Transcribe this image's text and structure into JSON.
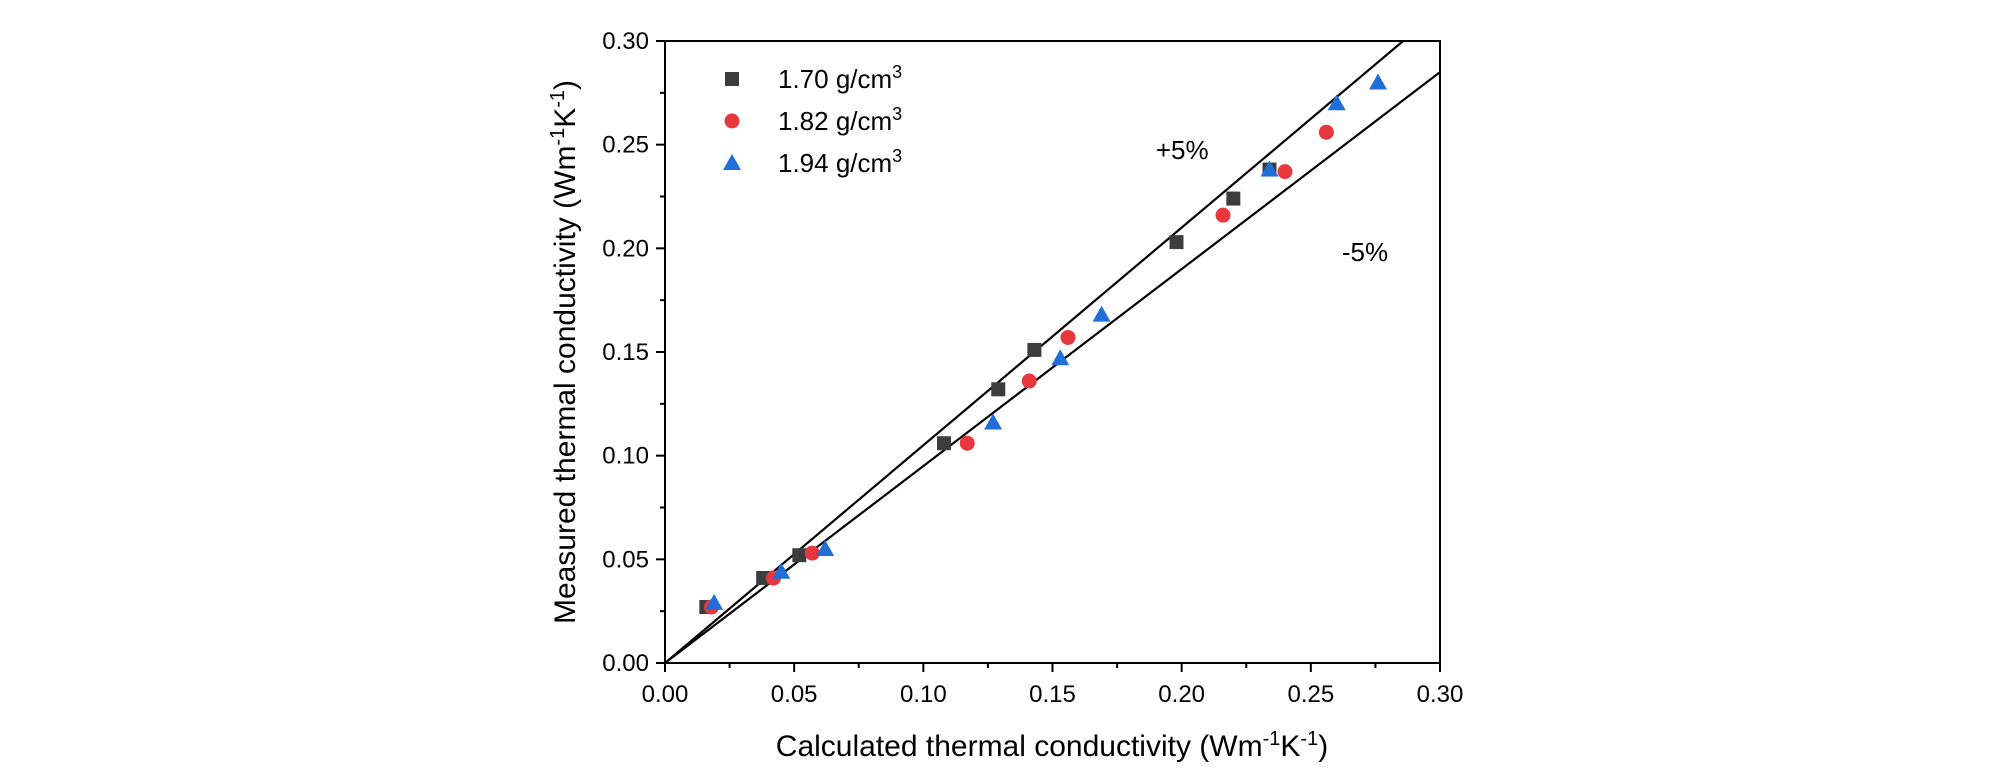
{
  "chart_data": {
    "type": "scatter",
    "title": "",
    "xlabel": {
      "main": "Calculated thermal conductivity (Wm",
      "sup1": "-1",
      "mid": "K",
      "sup2": "-1",
      "end": ")"
    },
    "ylabel": {
      "main": "Measured thermal conductivity (Wm",
      "sup1": "-1",
      "mid": "K",
      "sup2": "-1",
      "end": ")"
    },
    "xlim": [
      0,
      0.3
    ],
    "ylim": [
      0,
      0.3
    ],
    "xticks": [
      "0.00",
      "0.05",
      "0.10",
      "0.15",
      "0.20",
      "0.25",
      "0.30"
    ],
    "yticks": [
      "0.00",
      "0.05",
      "0.10",
      "0.15",
      "0.20",
      "0.25",
      "0.30"
    ],
    "grid": false,
    "legend_position": "top-left",
    "series": [
      {
        "name": "1.70 g/cm",
        "name_sup": "3",
        "marker": "square",
        "color": "#3d3d3d",
        "points": [
          [
            0.016,
            0.027
          ],
          [
            0.038,
            0.041
          ],
          [
            0.052,
            0.052
          ],
          [
            0.108,
            0.106
          ],
          [
            0.129,
            0.132
          ],
          [
            0.143,
            0.151
          ],
          [
            0.198,
            0.203
          ],
          [
            0.22,
            0.224
          ],
          [
            0.234,
            0.238
          ]
        ]
      },
      {
        "name": "1.82 g/cm",
        "name_sup": "3",
        "marker": "circle",
        "color": "#e8383d",
        "points": [
          [
            0.018,
            0.027
          ],
          [
            0.042,
            0.041
          ],
          [
            0.057,
            0.053
          ],
          [
            0.117,
            0.106
          ],
          [
            0.141,
            0.136
          ],
          [
            0.156,
            0.157
          ],
          [
            0.216,
            0.216
          ],
          [
            0.24,
            0.237
          ],
          [
            0.256,
            0.256
          ]
        ]
      },
      {
        "name": "1.94 g/cm",
        "name_sup": "3",
        "marker": "triangle",
        "color": "#1f6fd6",
        "points": [
          [
            0.019,
            0.029
          ],
          [
            0.045,
            0.044
          ],
          [
            0.062,
            0.055
          ],
          [
            0.127,
            0.116
          ],
          [
            0.153,
            0.147
          ],
          [
            0.169,
            0.168
          ],
          [
            0.234,
            0.238
          ],
          [
            0.26,
            0.27
          ],
          [
            0.276,
            0.28
          ]
        ]
      }
    ],
    "reference_lines": [
      {
        "name": "+5%",
        "slope": 1.05
      },
      {
        "name": "-5%",
        "slope": 0.95
      }
    ],
    "annotations": [
      {
        "text": "+5%",
        "x": 0.19,
        "y": 0.243
      },
      {
        "text": "-5%",
        "x": 0.262,
        "y": 0.194
      }
    ]
  }
}
